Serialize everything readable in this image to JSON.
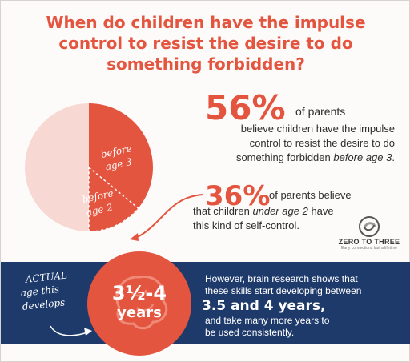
{
  "title": {
    "line1": "When do children have the impulse",
    "line2": "control to resist the desire to do",
    "line3": "something forbidden?"
  },
  "pie": {
    "colors": {
      "large": "#f7d8d3",
      "medium": "#e4553f",
      "small": "#e4553f",
      "accent": "#e4553f",
      "band": "#1e3a6b"
    },
    "slice1": {
      "line1": "before",
      "line2": "age 3",
      "percent": 56
    },
    "slice2": {
      "line1": "before",
      "line2": "age 2",
      "percent": 36
    }
  },
  "stat1": {
    "number": "56%",
    "lead": "of parents",
    "line1": "believe children have the impulse",
    "line2": "control to resist the desire to do",
    "line3_plain": "something forbidden ",
    "line3_em": "before age 3",
    "line3_end": "."
  },
  "stat2": {
    "number": "36%",
    "lead": "of parents believe",
    "line1_plain": "that children ",
    "line1_em": "under age 2",
    "line1_end": " have",
    "line2": "this kind of self-control."
  },
  "logo": {
    "text": "ZERO TO THREE",
    "tagline": "Early connections last a lifetime"
  },
  "actual": {
    "line1": "ACTUAL",
    "line2": "age this",
    "line3": "develops"
  },
  "age": {
    "value": "3½-4",
    "unit": "years"
  },
  "research": {
    "line1": "However, brain research shows that",
    "line2": "these skills start developing between",
    "big": "3.5 and 4 years,",
    "line3": "and take many more years to",
    "line4": "be used consistently."
  }
}
